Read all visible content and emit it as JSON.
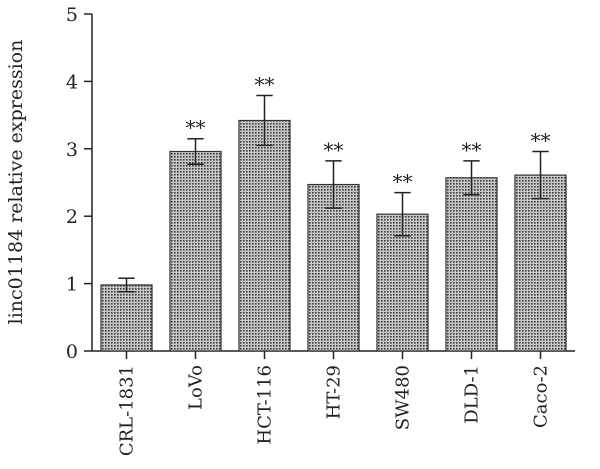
{
  "chart_data": {
    "type": "bar",
    "title": "",
    "xlabel": "",
    "ylabel": "linc01184 relative expression",
    "ylim": [
      0,
      5
    ],
    "yticks": [
      "0",
      "1",
      "2",
      "3",
      "4",
      "5"
    ],
    "categories": [
      "CRL-1831",
      "LoVo",
      "HCT-116",
      "HT-29",
      "SW480",
      "DLD-1",
      "Caco-2"
    ],
    "values": [
      0.98,
      2.96,
      3.42,
      2.47,
      2.03,
      2.57,
      2.61
    ],
    "errors": [
      0.1,
      0.19,
      0.37,
      0.35,
      0.32,
      0.25,
      0.35
    ],
    "annotations": [
      "",
      "**",
      "**",
      "**",
      "**",
      "**",
      "**"
    ],
    "bar_color": "#7a7a7a",
    "grid": false
  }
}
